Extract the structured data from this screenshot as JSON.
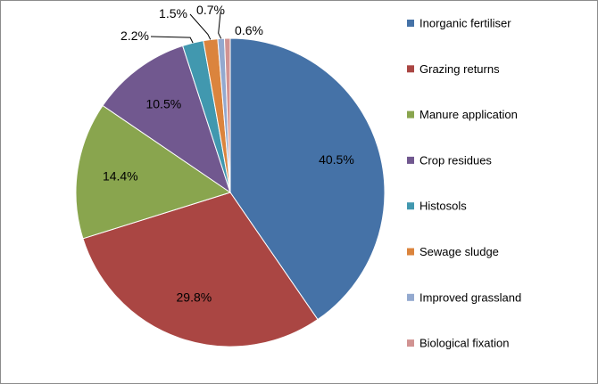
{
  "chart_data": {
    "type": "pie",
    "title": "",
    "legend_position": "right",
    "start_angle_deg": 0,
    "direction": "clockwise",
    "slices": [
      {
        "label": "Inorganic fertiliser",
        "value": 40.5,
        "display": "40.5%",
        "color": "#4572A7"
      },
      {
        "label": "Grazing returns",
        "value": 29.8,
        "display": "29.8%",
        "color": "#AA4643"
      },
      {
        "label": "Manure application",
        "value": 14.4,
        "display": "14.4%",
        "color": "#89A54E"
      },
      {
        "label": "Crop residues",
        "value": 10.5,
        "display": "10.5%",
        "color": "#71588F"
      },
      {
        "label": "Histosols",
        "value": 2.2,
        "display": "2.2%",
        "color": "#4198AF"
      },
      {
        "label": "Sewage sludge",
        "value": 1.5,
        "display": "1.5%",
        "color": "#DB843D"
      },
      {
        "label": "Improved grassland",
        "value": 0.7,
        "display": "0.7%",
        "color": "#93A9CF"
      },
      {
        "label": "Biological fixation",
        "value": 0.6,
        "display": "0.6%",
        "color": "#D19392"
      }
    ]
  }
}
